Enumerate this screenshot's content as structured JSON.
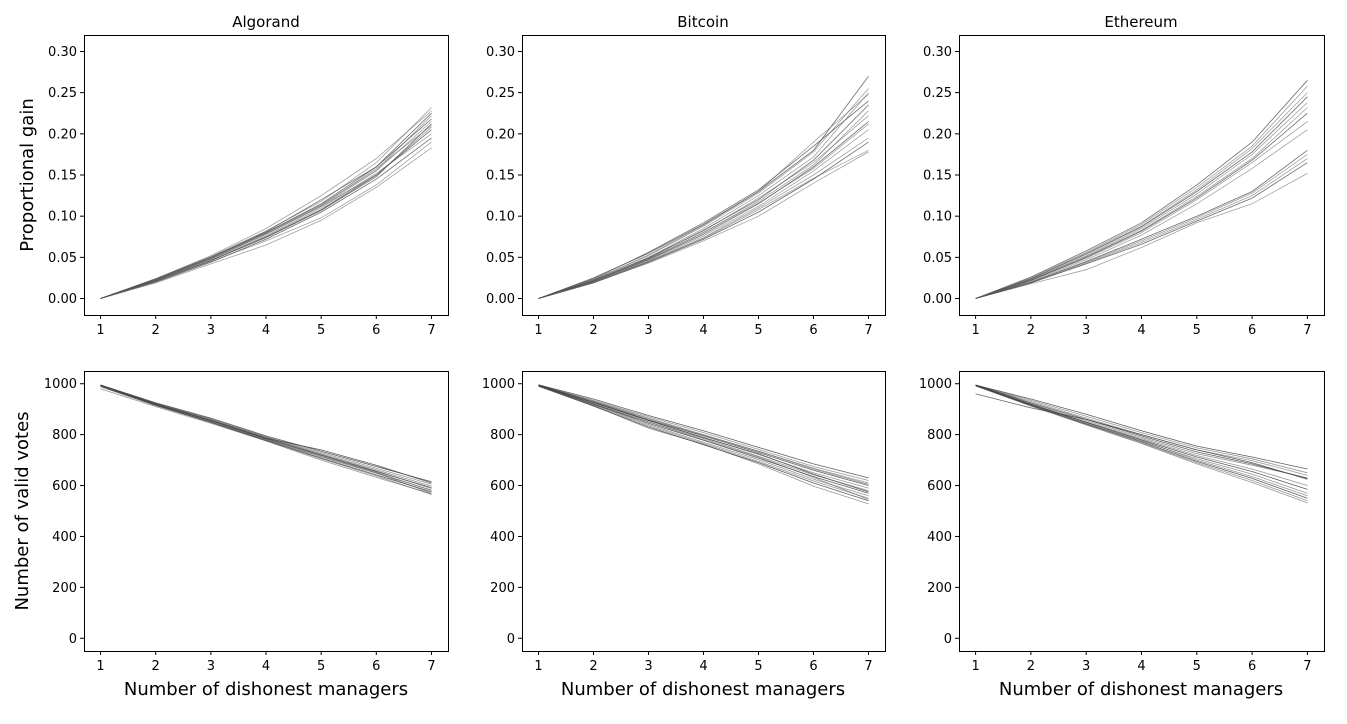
{
  "chart_data": [
    {
      "type": "line",
      "panel": "top-left",
      "title": "Algorand",
      "ylabel": "Proportional gain",
      "xlabel": "",
      "x": [
        1,
        2,
        3,
        4,
        5,
        6,
        7
      ],
      "xticks": [
        1,
        2,
        3,
        4,
        5,
        6,
        7
      ],
      "ylim": [
        -0.02,
        0.32
      ],
      "yticks": [
        0.0,
        0.05,
        0.1,
        0.15,
        0.2,
        0.25,
        0.3
      ],
      "ytick_labels": [
        "0.00",
        "0.05",
        "0.10",
        "0.15",
        "0.20",
        "0.25",
        "0.30"
      ],
      "line_color": "#555555",
      "series": [
        {
          "values": [
            0,
            0.024,
            0.05,
            0.08,
            0.115,
            0.16,
            0.225
          ]
        },
        {
          "values": [
            0,
            0.022,
            0.048,
            0.078,
            0.112,
            0.155,
            0.215
          ]
        },
        {
          "values": [
            0,
            0.023,
            0.049,
            0.079,
            0.113,
            0.158,
            0.21
          ]
        },
        {
          "values": [
            0,
            0.021,
            0.046,
            0.075,
            0.108,
            0.15,
            0.205
          ]
        },
        {
          "values": [
            0,
            0.024,
            0.051,
            0.082,
            0.118,
            0.165,
            0.232
          ]
        },
        {
          "values": [
            0,
            0.022,
            0.047,
            0.076,
            0.11,
            0.152,
            0.2
          ]
        },
        {
          "values": [
            0,
            0.02,
            0.044,
            0.072,
            0.105,
            0.145,
            0.195
          ]
        },
        {
          "values": [
            0,
            0.021,
            0.045,
            0.07,
            0.098,
            0.138,
            0.19
          ]
        },
        {
          "values": [
            0,
            0.019,
            0.042,
            0.065,
            0.095,
            0.135,
            0.183
          ]
        },
        {
          "values": [
            0,
            0.023,
            0.05,
            0.081,
            0.12,
            0.16,
            0.218
          ]
        },
        {
          "values": [
            0,
            0.022,
            0.048,
            0.078,
            0.112,
            0.15,
            0.208
          ]
        },
        {
          "values": [
            0,
            0.024,
            0.052,
            0.085,
            0.125,
            0.17,
            0.228
          ]
        },
        {
          "values": [
            0,
            0.021,
            0.046,
            0.074,
            0.107,
            0.148,
            0.212
          ]
        },
        {
          "values": [
            0,
            0.022,
            0.049,
            0.08,
            0.114,
            0.156,
            0.222
          ]
        }
      ]
    },
    {
      "type": "line",
      "panel": "top-center",
      "title": "Bitcoin",
      "ylabel": "",
      "xlabel": "",
      "x": [
        1,
        2,
        3,
        4,
        5,
        6,
        7
      ],
      "xticks": [
        1,
        2,
        3,
        4,
        5,
        6,
        7
      ],
      "ylim": [
        -0.02,
        0.32
      ],
      "yticks": [
        0.0,
        0.05,
        0.1,
        0.15,
        0.2,
        0.25,
        0.3
      ],
      "ytick_labels": [
        "0.00",
        "0.05",
        "0.10",
        "0.15",
        "0.20",
        "0.25",
        "0.30"
      ],
      "line_color": "#555555",
      "series": [
        {
          "values": [
            0,
            0.025,
            0.055,
            0.09,
            0.13,
            0.18,
            0.27
          ]
        },
        {
          "values": [
            0,
            0.023,
            0.052,
            0.088,
            0.128,
            0.178,
            0.255
          ]
        },
        {
          "values": [
            0,
            0.022,
            0.05,
            0.085,
            0.125,
            0.172,
            0.25
          ]
        },
        {
          "values": [
            0,
            0.022,
            0.049,
            0.083,
            0.12,
            0.168,
            0.235
          ]
        },
        {
          "values": [
            0,
            0.021,
            0.048,
            0.08,
            0.118,
            0.162,
            0.228
          ]
        },
        {
          "values": [
            0,
            0.022,
            0.05,
            0.082,
            0.122,
            0.165,
            0.222
          ]
        },
        {
          "values": [
            0,
            0.021,
            0.047,
            0.078,
            0.115,
            0.16,
            0.215
          ]
        },
        {
          "values": [
            0,
            0.02,
            0.046,
            0.076,
            0.112,
            0.155,
            0.205
          ]
        },
        {
          "values": [
            0,
            0.02,
            0.045,
            0.074,
            0.11,
            0.15,
            0.195
          ]
        },
        {
          "values": [
            0,
            0.019,
            0.044,
            0.072,
            0.105,
            0.145,
            0.19
          ]
        },
        {
          "values": [
            0,
            0.02,
            0.045,
            0.073,
            0.108,
            0.146,
            0.18
          ]
        },
        {
          "values": [
            0,
            0.019,
            0.043,
            0.07,
            0.1,
            0.14,
            0.178
          ]
        },
        {
          "values": [
            0,
            0.024,
            0.056,
            0.092,
            0.132,
            0.185,
            0.24
          ]
        },
        {
          "values": [
            0,
            0.023,
            0.053,
            0.089,
            0.13,
            0.19,
            0.248
          ]
        },
        {
          "values": [
            0,
            0.021,
            0.048,
            0.08,
            0.116,
            0.158,
            0.212
          ]
        }
      ]
    },
    {
      "type": "line",
      "panel": "top-right",
      "title": "Ethereum",
      "ylabel": "",
      "xlabel": "",
      "x": [
        1,
        2,
        3,
        4,
        5,
        6,
        7
      ],
      "xticks": [
        1,
        2,
        3,
        4,
        5,
        6,
        7
      ],
      "ylim": [
        -0.02,
        0.32
      ],
      "yticks": [
        0.0,
        0.05,
        0.1,
        0.15,
        0.2,
        0.25,
        0.3
      ],
      "ytick_labels": [
        "0.00",
        "0.05",
        "0.10",
        "0.15",
        "0.20",
        "0.25",
        "0.30"
      ],
      "line_color": "#555555",
      "series": [
        {
          "values": [
            0,
            0.026,
            0.058,
            0.092,
            0.138,
            0.19,
            0.265
          ]
        },
        {
          "values": [
            0,
            0.025,
            0.056,
            0.09,
            0.135,
            0.185,
            0.258
          ]
        },
        {
          "values": [
            0,
            0.024,
            0.055,
            0.088,
            0.132,
            0.182,
            0.25
          ]
        },
        {
          "values": [
            0,
            0.024,
            0.054,
            0.087,
            0.13,
            0.178,
            0.245
          ]
        },
        {
          "values": [
            0,
            0.023,
            0.052,
            0.085,
            0.127,
            0.175,
            0.238
          ]
        },
        {
          "values": [
            0,
            0.023,
            0.051,
            0.083,
            0.124,
            0.17,
            0.232
          ]
        },
        {
          "values": [
            0,
            0.022,
            0.05,
            0.082,
            0.122,
            0.168,
            0.225
          ]
        },
        {
          "values": [
            0,
            0.022,
            0.049,
            0.08,
            0.12,
            0.165,
            0.215
          ]
        },
        {
          "values": [
            0,
            0.021,
            0.047,
            0.077,
            0.115,
            0.158,
            0.205
          ]
        },
        {
          "values": [
            0,
            0.02,
            0.045,
            0.072,
            0.1,
            0.13,
            0.18
          ]
        },
        {
          "values": [
            0,
            0.02,
            0.044,
            0.07,
            0.098,
            0.128,
            0.175
          ]
        },
        {
          "values": [
            0,
            0.019,
            0.043,
            0.068,
            0.096,
            0.125,
            0.17
          ]
        },
        {
          "values": [
            0,
            0.019,
            0.042,
            0.066,
            0.094,
            0.122,
            0.165
          ]
        },
        {
          "values": [
            0,
            0.018,
            0.035,
            0.062,
            0.092,
            0.115,
            0.152
          ]
        }
      ]
    },
    {
      "type": "line",
      "panel": "bottom-left",
      "title": "",
      "ylabel": "Number of valid votes",
      "xlabel": "Number of dishonest managers",
      "x": [
        1,
        2,
        3,
        4,
        5,
        6,
        7
      ],
      "xticks": [
        1,
        2,
        3,
        4,
        5,
        6,
        7
      ],
      "ylim": [
        -50,
        1050
      ],
      "yticks": [
        0,
        200,
        400,
        600,
        800,
        1000
      ],
      "ytick_labels": [
        "0",
        "200",
        "400",
        "600",
        "800",
        "1000"
      ],
      "line_color": "#444444",
      "series": [
        {
          "values": [
            995,
            925,
            865,
            795,
            735,
            675,
            615
          ]
        },
        {
          "values": [
            993,
            922,
            862,
            792,
            730,
            668,
            605
          ]
        },
        {
          "values": [
            994,
            920,
            858,
            790,
            725,
            662,
            598
          ]
        },
        {
          "values": [
            992,
            918,
            855,
            785,
            720,
            655,
            592
          ]
        },
        {
          "values": [
            996,
            924,
            860,
            788,
            722,
            658,
            588
          ]
        },
        {
          "values": [
            990,
            915,
            850,
            780,
            712,
            648,
            582
          ]
        },
        {
          "values": [
            993,
            917,
            848,
            778,
            708,
            642,
            575
          ]
        },
        {
          "values": [
            991,
            916,
            852,
            782,
            715,
            650,
            570
          ]
        },
        {
          "values": [
            988,
            914,
            848,
            776,
            705,
            638,
            565
          ]
        },
        {
          "values": [
            994,
            921,
            856,
            786,
            740,
            680,
            610
          ]
        },
        {
          "values": [
            992,
            919,
            854,
            784,
            718,
            652,
            580
          ]
        },
        {
          "values": [
            980,
            910,
            845,
            775,
            700,
            632,
            568
          ]
        }
      ]
    },
    {
      "type": "line",
      "panel": "bottom-center",
      "title": "",
      "ylabel": "",
      "xlabel": "Number of dishonest managers",
      "x": [
        1,
        2,
        3,
        4,
        5,
        6,
        7
      ],
      "xticks": [
        1,
        2,
        3,
        4,
        5,
        6,
        7
      ],
      "ylim": [
        -50,
        1050
      ],
      "yticks": [
        0,
        200,
        400,
        600,
        800,
        1000
      ],
      "ytick_labels": [
        "0",
        "200",
        "400",
        "600",
        "800",
        "1000"
      ],
      "line_color": "#444444",
      "series": [
        {
          "values": [
            996,
            940,
            875,
            815,
            750,
            685,
            630
          ]
        },
        {
          "values": [
            995,
            935,
            870,
            808,
            742,
            675,
            620
          ]
        },
        {
          "values": [
            994,
            932,
            865,
            800,
            735,
            668,
            610
          ]
        },
        {
          "values": [
            993,
            928,
            858,
            795,
            730,
            660,
            600
          ]
        },
        {
          "values": [
            995,
            925,
            855,
            790,
            722,
            650,
            590
          ]
        },
        {
          "values": [
            992,
            922,
            850,
            785,
            715,
            642,
            580
          ]
        },
        {
          "values": [
            994,
            920,
            845,
            778,
            708,
            635,
            570
          ]
        },
        {
          "values": [
            993,
            918,
            840,
            770,
            702,
            625,
            560
          ]
        },
        {
          "values": [
            991,
            915,
            835,
            765,
            695,
            618,
            550
          ]
        },
        {
          "values": [
            990,
            912,
            830,
            760,
            690,
            610,
            540
          ]
        },
        {
          "values": [
            992,
            914,
            825,
            762,
            685,
            598,
            528
          ]
        },
        {
          "values": [
            995,
            930,
            862,
            798,
            735,
            665,
            605
          ]
        },
        {
          "values": [
            994,
            926,
            856,
            788,
            725,
            645,
            575
          ]
        },
        {
          "values": [
            993,
            920,
            850,
            780,
            712,
            632,
            545
          ]
        }
      ]
    },
    {
      "type": "line",
      "panel": "bottom-right",
      "title": "",
      "ylabel": "",
      "xlabel": "Number of dishonest managers",
      "x": [
        1,
        2,
        3,
        4,
        5,
        6,
        7
      ],
      "xticks": [
        1,
        2,
        3,
        4,
        5,
        6,
        7
      ],
      "ylim": [
        -50,
        1050
      ],
      "yticks": [
        0,
        200,
        400,
        600,
        800,
        1000
      ],
      "ytick_labels": [
        "0",
        "200",
        "400",
        "600",
        "800",
        "1000"
      ],
      "line_color": "#444444",
      "series": [
        {
          "values": [
            995,
            940,
            880,
            815,
            755,
            712,
            665
          ]
        },
        {
          "values": [
            995,
            935,
            872,
            808,
            748,
            705,
            650
          ]
        },
        {
          "values": [
            994,
            930,
            865,
            800,
            740,
            698,
            640
          ]
        },
        {
          "values": [
            995,
            925,
            860,
            795,
            732,
            685,
            628
          ]
        },
        {
          "values": [
            993,
            922,
            855,
            790,
            725,
            680,
            630
          ]
        },
        {
          "values": [
            994,
            920,
            850,
            785,
            718,
            665,
            600
          ]
        },
        {
          "values": [
            993,
            918,
            848,
            780,
            712,
            655,
            585
          ]
        },
        {
          "values": [
            992,
            915,
            845,
            775,
            705,
            645,
            570
          ]
        },
        {
          "values": [
            994,
            920,
            848,
            778,
            700,
            635,
            560
          ]
        },
        {
          "values": [
            993,
            916,
            842,
            772,
            695,
            628,
            550
          ]
        },
        {
          "values": [
            992,
            914,
            840,
            768,
            690,
            620,
            540
          ]
        },
        {
          "values": [
            991,
            912,
            838,
            765,
            685,
            612,
            532
          ]
        },
        {
          "values": [
            960,
            905,
            860,
            800,
            740,
            690,
            625
          ]
        }
      ]
    }
  ]
}
